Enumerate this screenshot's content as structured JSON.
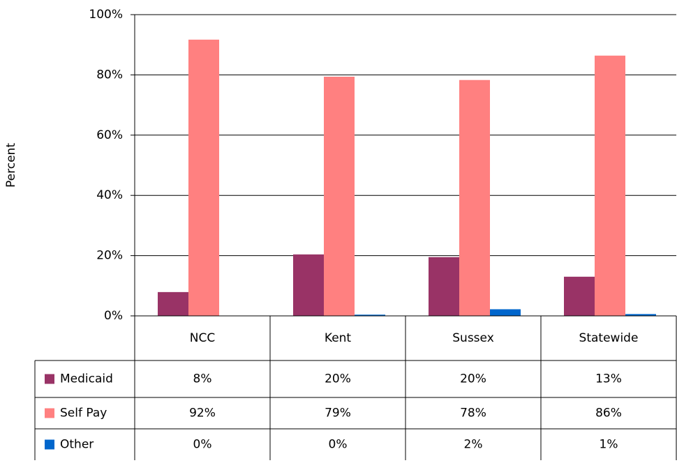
{
  "chart_data": {
    "type": "bar",
    "y_label": "Percent",
    "categories": [
      "NCC",
      "Kent",
      "Sussex",
      "Statewide"
    ],
    "series": [
      {
        "name": "Medicaid",
        "color": "#993366",
        "values": [
          7.9,
          20.4,
          19.5,
          13.0
        ],
        "value_labels": [
          "8%",
          "20%",
          "20%",
          "13%"
        ]
      },
      {
        "name": "Self Pay",
        "color": "#ff8080",
        "values": [
          91.7,
          79.4,
          78.3,
          86.4
        ],
        "value_labels": [
          "92%",
          "79%",
          "78%",
          "86%"
        ]
      },
      {
        "name": "Other",
        "color": "#0066cc",
        "values": [
          0,
          0.4,
          2.2,
          0.6
        ],
        "value_labels": [
          "0%",
          "0%",
          "2%",
          "1%"
        ]
      }
    ],
    "ylim": [
      0,
      100
    ],
    "yticks": [
      {
        "value": 0,
        "label": "0%"
      },
      {
        "value": 20,
        "label": "20%"
      },
      {
        "value": 40,
        "label": "40%"
      },
      {
        "value": 60,
        "label": "60%"
      },
      {
        "value": 80,
        "label": "80%"
      },
      {
        "value": 100,
        "label": "100%"
      }
    ],
    "grid": true
  }
}
